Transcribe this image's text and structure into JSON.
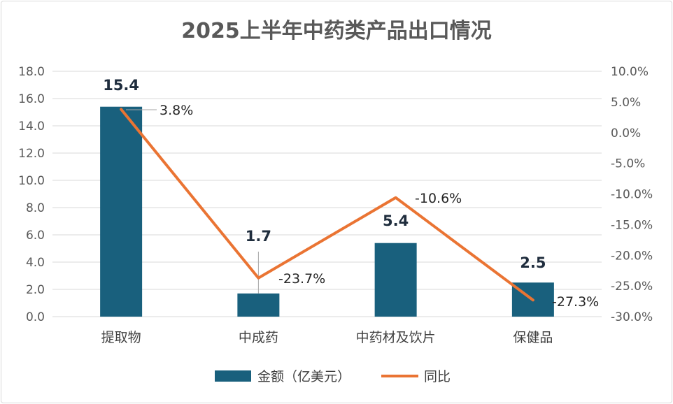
{
  "chart_data": {
    "type": "bar+line",
    "title": "2025上半年中药类产品出口情况",
    "categories": [
      "提取物",
      "中成药",
      "中药材及饮片",
      "保健品"
    ],
    "series": [
      {
        "name": "金额（亿美元）",
        "type": "bar",
        "axis": "left",
        "values": [
          15.4,
          1.7,
          5.4,
          2.5
        ],
        "labels": [
          "15.4",
          "1.7",
          "5.4",
          "2.5"
        ],
        "color": "#19607d"
      },
      {
        "name": "同比",
        "type": "line",
        "axis": "right",
        "values": [
          3.8,
          -23.7,
          -10.6,
          -27.3
        ],
        "labels": [
          "3.8%",
          "-23.7%",
          "-10.6%",
          "-27.3%"
        ],
        "color": "#ea7433"
      }
    ],
    "y_left": {
      "range": [
        0,
        18
      ],
      "ticks": [
        "0.0",
        "2.0",
        "4.0",
        "6.0",
        "8.0",
        "10.0",
        "12.0",
        "14.0",
        "16.0",
        "18.0"
      ]
    },
    "y_right": {
      "range": [
        -30,
        10
      ],
      "ticks": [
        "-30.0%",
        "-25.0%",
        "-20.0%",
        "-15.0%",
        "-10.0%",
        "-5.0%",
        "0.0%",
        "5.0%",
        "10.0%"
      ]
    },
    "grid": true,
    "legend": "bottom"
  }
}
